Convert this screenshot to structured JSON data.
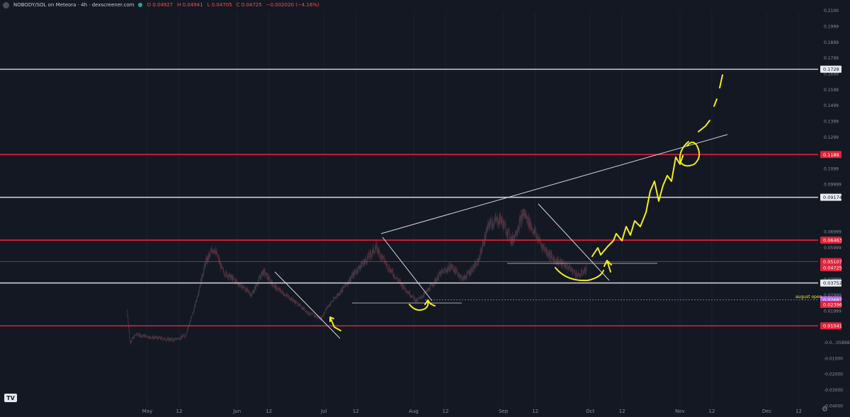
{
  "header": {
    "title": "NOBODY/SOL on Meteora · 4h · dexscreener.com",
    "open": "O 0.04927",
    "high": "H 0.04941",
    "low": "L 0.04705",
    "close": "C 0.04725",
    "change": "−0.002020 (−4.16%)"
  },
  "colors": {
    "background": "#141823",
    "red_level": "#e0243a",
    "white_level": "#c9ccd4",
    "annotation": "#f2ee1a",
    "candle_up": "#3b3f4a",
    "purple_tag": "#b66ee0"
  },
  "chart_data": {
    "type": "candlestick",
    "price_axis": {
      "range": [
        -0.041,
        0.213
      ],
      "ticks": [
        {
          "v": 0.21,
          "t": "0.2100"
        },
        {
          "v": 0.2,
          "t": "0.1999"
        },
        {
          "v": 0.19,
          "t": "0.1899"
        },
        {
          "v": 0.18,
          "t": "0.1799"
        },
        {
          "v": 0.17,
          "t": "0.1699"
        },
        {
          "v": 0.16,
          "t": "0.1599"
        },
        {
          "v": 0.15,
          "t": "0.1499"
        },
        {
          "v": 0.14,
          "t": "0.1399"
        },
        {
          "v": 0.13,
          "t": "0.1299"
        },
        {
          "v": 0.11,
          "t": "0.1099"
        },
        {
          "v": 0.1,
          "t": "0.09999"
        },
        {
          "v": 0.07,
          "t": "0.06999"
        },
        {
          "v": 0.06,
          "t": "0.05999"
        },
        {
          "v": 0.04,
          "t": "0.03999"
        },
        {
          "v": 0.03,
          "t": "0.02999"
        },
        {
          "v": 0.02,
          "t": "0.01999"
        },
        {
          "v": 0,
          "t": "-0.0...05898"
        },
        {
          "v": -0.01,
          "t": "-0.01000"
        },
        {
          "v": -0.02,
          "t": "-0.02000"
        },
        {
          "v": -0.03,
          "t": "-0.03000"
        },
        {
          "v": -0.04,
          "t": "-0.04000"
        }
      ]
    },
    "time_axis": {
      "labels": [
        {
          "d": "2024-05-01",
          "t": "May"
        },
        {
          "d": "2024-05-12",
          "t": "12"
        },
        {
          "d": "2024-06-01",
          "t": "Jun"
        },
        {
          "d": "2024-06-12",
          "t": "12"
        },
        {
          "d": "2024-07-01",
          "t": "Jul"
        },
        {
          "d": "2024-07-12",
          "t": "12"
        },
        {
          "d": "2024-08-01",
          "t": "Aug"
        },
        {
          "d": "2024-08-12",
          "t": "12"
        },
        {
          "d": "2024-09-01",
          "t": "Sep"
        },
        {
          "d": "2024-09-12",
          "t": "12"
        },
        {
          "d": "2024-10-01",
          "t": "Oct"
        },
        {
          "d": "2024-10-12",
          "t": "12"
        },
        {
          "d": "2024-11-01",
          "t": "Nov"
        },
        {
          "d": "2024-11-12",
          "t": "12"
        },
        {
          "d": "2024-12-01",
          "t": "Dec"
        },
        {
          "d": "2024-12-12",
          "t": "12"
        }
      ]
    },
    "levels": [
      {
        "price": 0.1728,
        "label": "0.1728",
        "color": "white"
      },
      {
        "price": 0.1188,
        "label": "0.1188",
        "color": "red"
      },
      {
        "price": 0.09174,
        "label": "0.09174",
        "color": "white"
      },
      {
        "price": 0.06463,
        "label": "0.06463",
        "color": "red"
      },
      {
        "price": 0.05107,
        "label": "0.05107",
        "color": "red_thin"
      },
      {
        "price": 0.03752,
        "label": "0.03752",
        "color": "white"
      },
      {
        "price": 0.01041,
        "label": "0.01041",
        "color": "red"
      }
    ],
    "tags": [
      {
        "price": 0.04725,
        "label": "0.04725",
        "color": "red"
      },
      {
        "price": 0.02687,
        "label": "0.02687",
        "color": "purple"
      },
      {
        "price": 0.02396,
        "label": "0.02396",
        "color": "red"
      }
    ],
    "annotation_text": {
      "price": 0.0295,
      "label": "august open"
    },
    "price_path": [
      [
        "2024-04-24",
        0.02
      ],
      [
        "2024-04-25",
        0.0
      ],
      [
        "2024-04-27",
        0.005
      ],
      [
        "2024-05-03",
        0.003
      ],
      [
        "2024-05-10",
        0.0015
      ],
      [
        "2024-05-14",
        0.004
      ],
      [
        "2024-05-17",
        0.02
      ],
      [
        "2024-05-21",
        0.05
      ],
      [
        "2024-05-24",
        0.06
      ],
      [
        "2024-05-27",
        0.045
      ],
      [
        "2024-06-01",
        0.038
      ],
      [
        "2024-06-06",
        0.03
      ],
      [
        "2024-06-10",
        0.045
      ],
      [
        "2024-06-14",
        0.035
      ],
      [
        "2024-06-20",
        0.027
      ],
      [
        "2024-06-26",
        0.018
      ],
      [
        "2024-06-30",
        0.015
      ],
      [
        "2024-07-02",
        0.022
      ],
      [
        "2024-07-08",
        0.035
      ],
      [
        "2024-07-12",
        0.045
      ],
      [
        "2024-07-16",
        0.053
      ],
      [
        "2024-07-19",
        0.06
      ],
      [
        "2024-07-23",
        0.048
      ],
      [
        "2024-07-28",
        0.036
      ],
      [
        "2024-08-02",
        0.026
      ],
      [
        "2024-08-06",
        0.033
      ],
      [
        "2024-08-10",
        0.043
      ],
      [
        "2024-08-14",
        0.048
      ],
      [
        "2024-08-18",
        0.04
      ],
      [
        "2024-08-23",
        0.05
      ],
      [
        "2024-08-27",
        0.075
      ],
      [
        "2024-08-31",
        0.078
      ],
      [
        "2024-09-04",
        0.064
      ],
      [
        "2024-09-08",
        0.082
      ],
      [
        "2024-09-11",
        0.072
      ],
      [
        "2024-09-14",
        0.062
      ],
      [
        "2024-09-18",
        0.053
      ],
      [
        "2024-09-23",
        0.048
      ],
      [
        "2024-09-27",
        0.042
      ],
      [
        "2024-09-30",
        0.047
      ]
    ]
  }
}
